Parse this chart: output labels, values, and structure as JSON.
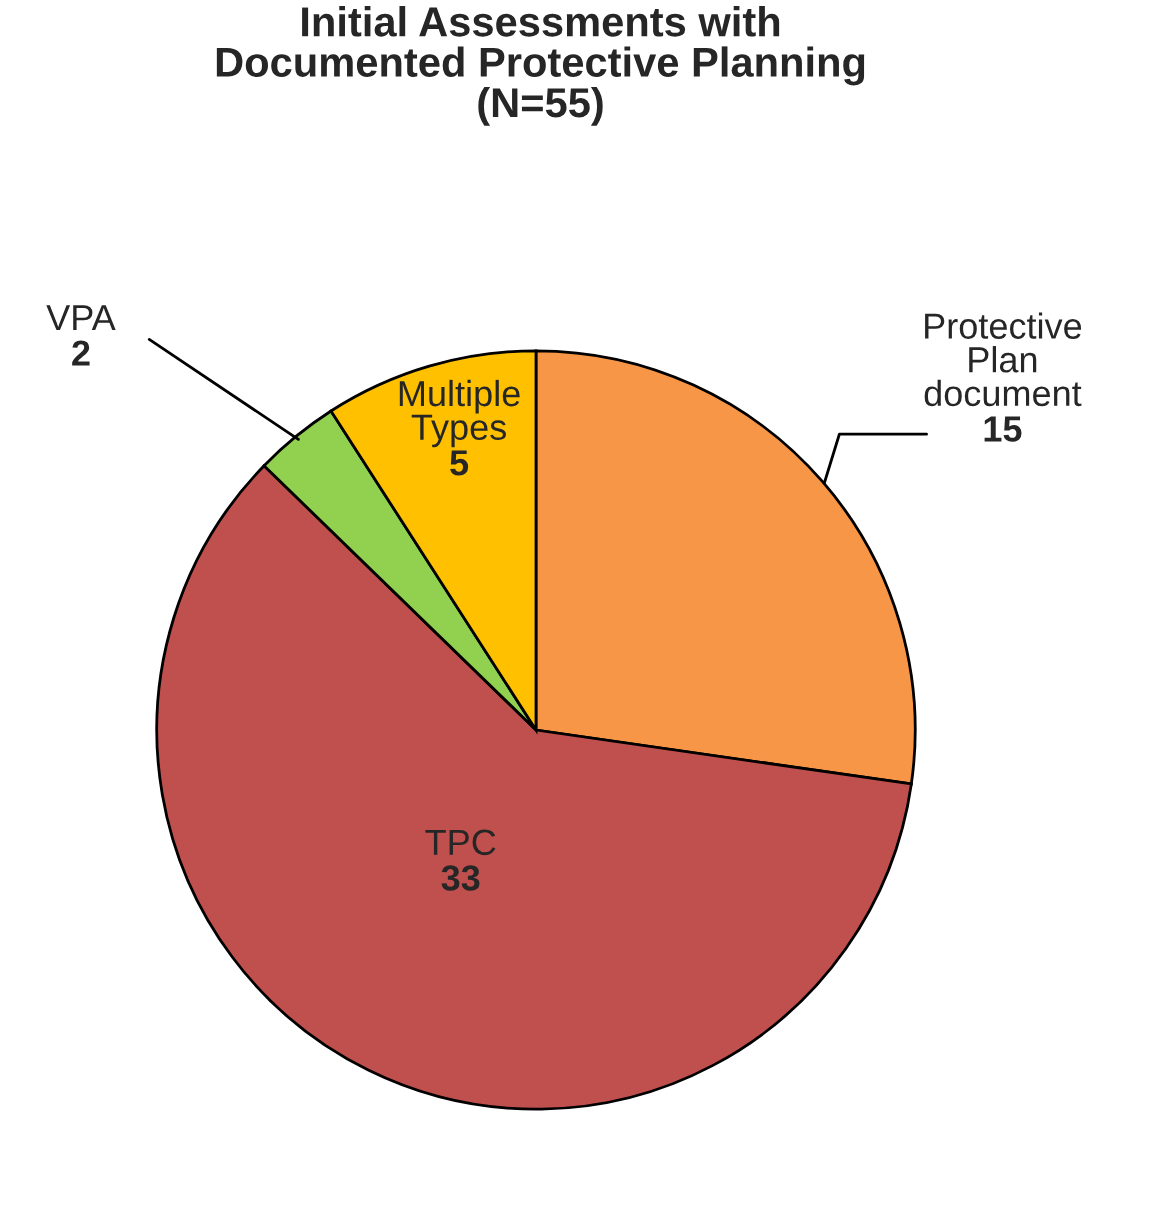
{
  "chart_data": {
    "type": "pie",
    "title": "Initial Assessments with\nDocumented Protective Planning\n(N=55)",
    "categories": [
      "Protective\nPlan\ndocument",
      "TPC",
      "VPA",
      "Multiple\nTypes"
    ],
    "values": [
      15,
      33,
      2,
      5
    ],
    "colors": [
      "#f79646",
      "#c0504d",
      "#92d050",
      "#ffc000"
    ],
    "data_labels": true,
    "legend": false
  }
}
